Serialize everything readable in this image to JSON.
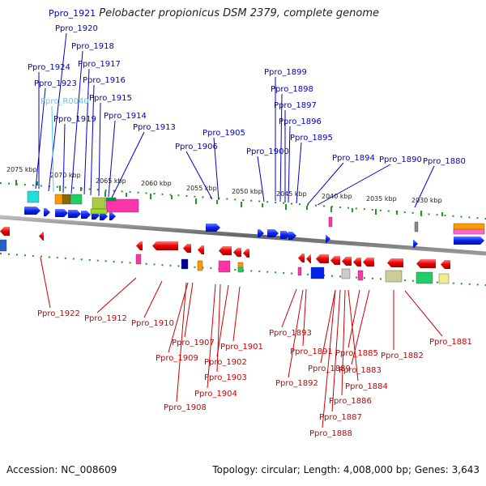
{
  "header": {
    "title_id": "Ppro_1921",
    "title_organism": "Pelobacter propionicus DSM 2379, complete genome"
  },
  "footer": {
    "accession": "Accession: NC_008609",
    "topology": "Topology: circular; Length: 4,008,000 bp; Genes: 3,643"
  },
  "colors": {
    "forward_label": "#0000cc",
    "reverse_label": "#cc0000",
    "rna_label": "#55ccee",
    "forward_gene": "#0022ee",
    "reverse_gene": "#ee0000",
    "backbone": "#777777",
    "tick": "#229922"
  },
  "scale": {
    "tick_labels": [
      "2075 kbp",
      "2070 kbp",
      "2065 kbp",
      "2060 kbp",
      "2055 kbp",
      "2050 kbp",
      "2045 kbp",
      "2040 kbp",
      "2035 kbp",
      "2030 kbp"
    ]
  },
  "forward_labels": [
    "Ppro_1920",
    "Ppro_1918",
    "Ppro_1924",
    "Ppro_1917",
    "Ppro_1923",
    "Ppro_1916",
    "Ppro_R0040",
    "Ppro_1915",
    "Ppro_1919",
    "Ppro_1914",
    "Ppro_1913",
    "Ppro_1906",
    "Ppro_1905",
    "Ppro_1899",
    "Ppro_1898",
    "Ppro_1897",
    "Ppro_1896",
    "Ppro_1900",
    "Ppro_1895",
    "Ppro_1894",
    "Ppro_1890",
    "Ppro_1880"
  ],
  "reverse_labels": [
    "Ppro_1922",
    "Ppro_1912",
    "Ppro_1910",
    "Ppro_1907",
    "Ppro_1909",
    "Ppro_1901",
    "Ppro_1902",
    "Ppro_1903",
    "Ppro_1904",
    "Ppro_1908",
    "Ppro_1893",
    "Ppro_1891",
    "Ppro_1892",
    "Ppro_1885",
    "Ppro_1889",
    "Ppro_1883",
    "Ppro_1882",
    "Ppro_1881",
    "Ppro_1884",
    "Ppro_1886",
    "Ppro_1887",
    "Ppro_1888"
  ]
}
